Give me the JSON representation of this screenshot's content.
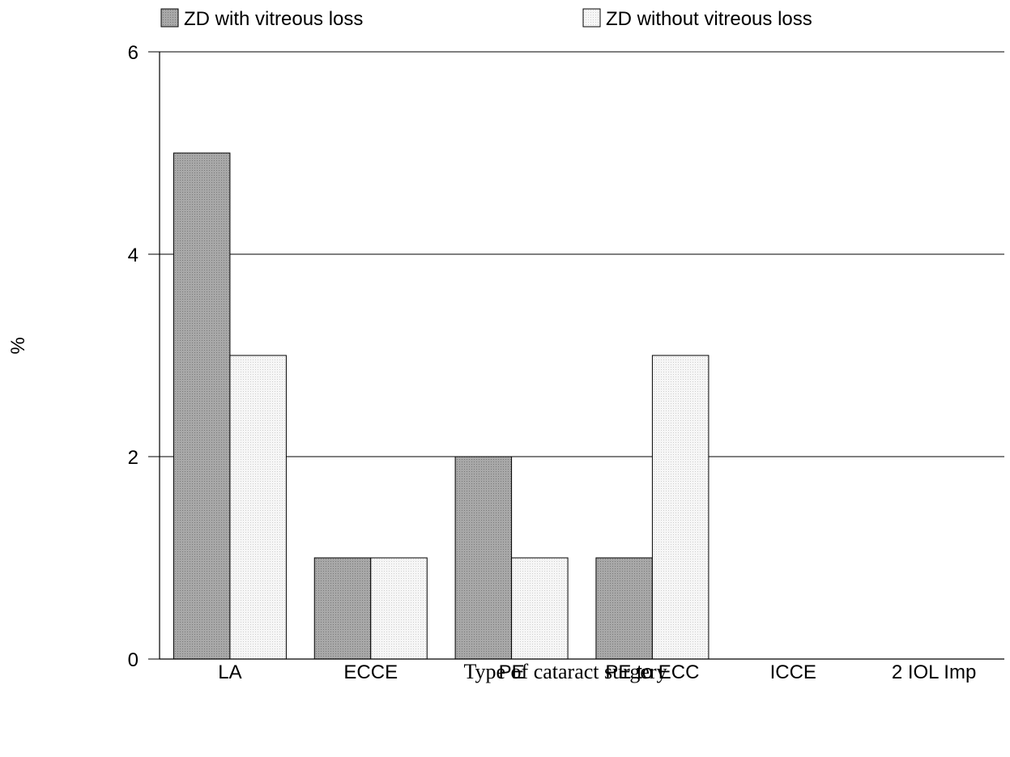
{
  "chart_data": {
    "type": "bar",
    "categories": [
      "LA",
      "ECCE",
      "PE",
      "PE to ECC",
      "ICCE",
      "2 IOL Imp"
    ],
    "series": [
      {
        "name": "ZD with vitreous loss",
        "values": [
          5,
          1,
          2,
          1,
          0,
          0
        ],
        "color": "#a8a8a8"
      },
      {
        "name": "ZD without vitreous loss",
        "values": [
          3,
          1,
          1,
          3,
          0,
          0
        ],
        "color": "#f2f2f2"
      }
    ],
    "title": "",
    "xlabel": "Type of cataract surgery",
    "ylabel": "%",
    "ylim": [
      0,
      6
    ],
    "yticks": [
      0,
      2,
      4,
      6
    ],
    "grid": true,
    "legend": "top"
  }
}
